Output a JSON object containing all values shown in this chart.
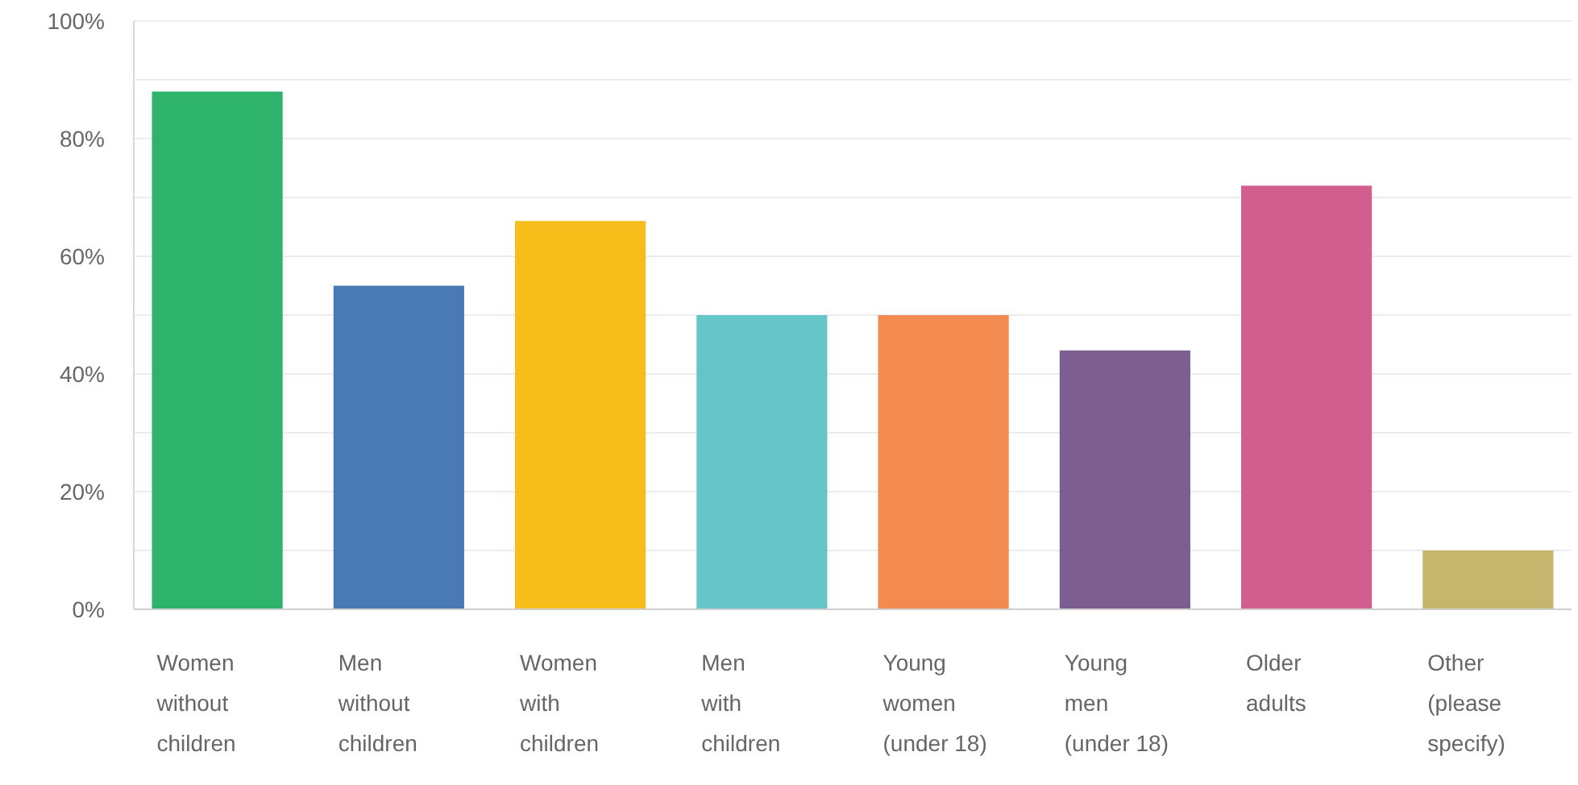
{
  "chart_data": {
    "type": "bar",
    "categories": [
      "Women without children",
      "Men without children",
      "Women with children",
      "Men with children",
      "Young women (under 18)",
      "Young men (under 18)",
      "Older adults",
      "Other (please specify)"
    ],
    "values": [
      88,
      55,
      66,
      50,
      50,
      44,
      72,
      10
    ],
    "colors": [
      "#2db36c",
      "#4a7ab5",
      "#f6bd1b",
      "#65c5c8",
      "#f38b51",
      "#7c5e91",
      "#d25e8e",
      "#c4b66d"
    ],
    "ylim": [
      0,
      100
    ],
    "yticks": [
      {
        "value": 0,
        "label": "0%"
      },
      {
        "value": 10,
        "label": null
      },
      {
        "value": 20,
        "label": "20%"
      },
      {
        "value": 30,
        "label": null
      },
      {
        "value": 40,
        "label": "40%"
      },
      {
        "value": 50,
        "label": null
      },
      {
        "value": 60,
        "label": "60%"
      },
      {
        "value": 70,
        "label": null
      },
      {
        "value": 80,
        "label": "80%"
      },
      {
        "value": 90,
        "label": null
      },
      {
        "value": 100,
        "label": "100%"
      }
    ],
    "grid": "y"
  }
}
